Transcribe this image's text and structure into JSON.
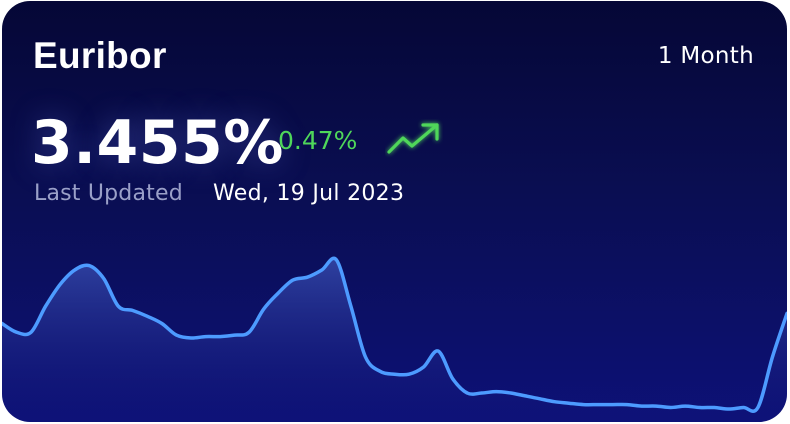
{
  "card": {
    "title": "Euribor",
    "period": "1 Month",
    "rate": "3.455%",
    "change": "0.47%",
    "trend_icon": "trending-up-icon",
    "last_updated_label": "Last Updated",
    "last_updated_date": "Wed, 19 Jul 2023"
  },
  "colors": {
    "line": "#4d9bff",
    "change_positive": "#4fd65a",
    "card_top": "#050736",
    "card_bottom": "#0d1177"
  },
  "chart_data": {
    "type": "area",
    "title": "",
    "xlabel": "",
    "ylabel": "",
    "grid": false,
    "legend": "none",
    "ylim": [
      0,
      125
    ],
    "series": [
      {
        "values": [
          68,
          62,
          62,
          80,
          95,
          105,
          108,
          99,
          80,
          77,
          73,
          68,
          60,
          58,
          59,
          59,
          60,
          62,
          78,
          89,
          98,
          100,
          105,
          112,
          80,
          45,
          35,
          33,
          33,
          38,
          49,
          30,
          20,
          20,
          21,
          20,
          18,
          16,
          14,
          13,
          12,
          12,
          12,
          12,
          11,
          11,
          10,
          11,
          10,
          10,
          9,
          10,
          10,
          45,
          75
        ]
      }
    ]
  }
}
